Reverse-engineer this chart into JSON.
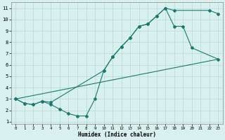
{
  "line1_x": [
    0,
    1,
    2,
    3,
    4,
    10,
    11,
    12,
    13,
    14,
    15,
    16,
    17,
    18,
    22,
    23
  ],
  "line1_y": [
    3,
    2.6,
    2.5,
    2.8,
    2.7,
    5.5,
    6.7,
    7.6,
    8.4,
    9.4,
    9.6,
    10.3,
    11.0,
    10.8,
    10.8,
    10.5
  ],
  "line2_x": [
    0,
    1,
    2,
    3,
    4,
    5,
    6,
    7,
    8,
    9,
    10,
    11,
    12,
    13,
    14,
    15,
    16,
    17,
    18,
    19,
    20,
    23
  ],
  "line2_y": [
    3,
    2.6,
    2.5,
    2.8,
    2.5,
    2.1,
    1.7,
    1.5,
    1.5,
    3.0,
    5.5,
    6.7,
    7.6,
    8.4,
    9.4,
    9.6,
    10.3,
    11.0,
    9.4,
    9.4,
    7.5,
    6.5
  ],
  "line3_x": [
    0,
    23
  ],
  "line3_y": [
    3.0,
    6.5
  ],
  "color": "#1a7a6e",
  "bg_color": "#d8f0ee",
  "grid_color": "#b8d8d4",
  "xlabel": "Humidex (Indice chaleur)",
  "xlim": [
    -0.5,
    23.5
  ],
  "ylim": [
    0.8,
    11.5
  ],
  "yticks": [
    1,
    2,
    3,
    4,
    5,
    6,
    7,
    8,
    9,
    10,
    11
  ],
  "xticks": [
    0,
    1,
    2,
    3,
    4,
    5,
    6,
    7,
    8,
    9,
    10,
    11,
    12,
    13,
    14,
    15,
    16,
    17,
    18,
    19,
    20,
    21,
    22,
    23
  ]
}
